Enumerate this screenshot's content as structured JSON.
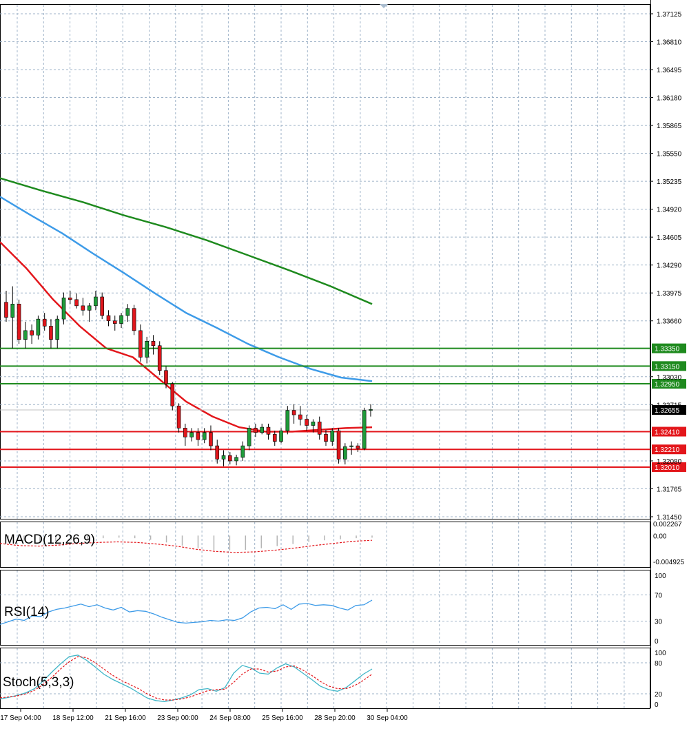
{
  "chart_data": {
    "type": "candlestick",
    "symbol": "",
    "colors": {
      "bull": "#1f9b3a",
      "bear": "#e0161c",
      "ma_fast": "#e3161b",
      "ma_mid": "#3d9be8",
      "ma_slow": "#1e8a1e",
      "support": "#e3161b",
      "resistance": "#1e8a1e",
      "grid": "#9fb3c8",
      "rsi": "#3d9be8",
      "stoch_main": "#3fb6c8",
      "stoch_signal": "#e3161b",
      "macd_hist": "#b4b4b4",
      "macd_signal": "#e3161b"
    },
    "price_axis": {
      "ylim": [
        1.3145,
        1.37125
      ],
      "ticks": [
        "1.37125",
        "1.36810",
        "1.36495",
        "1.36180",
        "1.35865",
        "1.35550",
        "1.35235",
        "1.34920",
        "1.34605",
        "1.34290",
        "1.33975",
        "1.33660",
        "1.33030",
        "1.32715",
        "1.32080",
        "1.31765",
        "1.31450"
      ]
    },
    "current_price": "1.32655",
    "horizontal_levels": [
      {
        "price": 1.3335,
        "label": "1.33350",
        "kind": "resistance"
      },
      {
        "price": 1.3315,
        "label": "1.33150",
        "kind": "resistance"
      },
      {
        "price": 1.3295,
        "label": "1.32950",
        "kind": "resistance"
      },
      {
        "price": 1.3241,
        "label": "1.32410",
        "kind": "support"
      },
      {
        "price": 1.3221,
        "label": "1.32210",
        "kind": "support"
      },
      {
        "price": 1.3201,
        "label": "1.32010",
        "kind": "support"
      }
    ],
    "time_labels": [
      "17 Sep 04:00",
      "18 Sep 12:00",
      "21 Sep 16:00",
      "23 Sep 00:00",
      "24 Sep 08:00",
      "25 Sep 16:00",
      "28 Sep 20:00",
      "30 Sep 04:00"
    ],
    "candles_ohlc": [
      [
        1.3387,
        1.34,
        1.3365,
        1.337
      ],
      [
        1.337,
        1.3405,
        1.3335,
        1.3385
      ],
      [
        1.3385,
        1.339,
        1.334,
        1.3345
      ],
      [
        1.3345,
        1.3365,
        1.3335,
        1.3355
      ],
      [
        1.3355,
        1.3362,
        1.334,
        1.335
      ],
      [
        1.335,
        1.3372,
        1.3345,
        1.3368
      ],
      [
        1.3368,
        1.3375,
        1.3355,
        1.336
      ],
      [
        1.336,
        1.3368,
        1.3335,
        1.3345
      ],
      [
        1.3345,
        1.3372,
        1.3335,
        1.3368
      ],
      [
        1.3368,
        1.3398,
        1.3362,
        1.3392
      ],
      [
        1.3392,
        1.34,
        1.3385,
        1.339
      ],
      [
        1.339,
        1.3397,
        1.338,
        1.3383
      ],
      [
        1.3383,
        1.3392,
        1.3372,
        1.3378
      ],
      [
        1.3378,
        1.3386,
        1.3365,
        1.3383
      ],
      [
        1.3383,
        1.34,
        1.3378,
        1.3393
      ],
      [
        1.3393,
        1.3398,
        1.3368,
        1.3372
      ],
      [
        1.3372,
        1.3378,
        1.336,
        1.3366
      ],
      [
        1.3366,
        1.3372,
        1.3355,
        1.3363
      ],
      [
        1.3363,
        1.3375,
        1.3358,
        1.3372
      ],
      [
        1.3372,
        1.3385,
        1.3365,
        1.338
      ],
      [
        1.338,
        1.3384,
        1.335,
        1.3355
      ],
      [
        1.3355,
        1.3362,
        1.332,
        1.3325
      ],
      [
        1.3325,
        1.3348,
        1.3318,
        1.3343
      ],
      [
        1.3343,
        1.335,
        1.3328,
        1.3338
      ],
      [
        1.3338,
        1.3343,
        1.3305,
        1.331
      ],
      [
        1.331,
        1.3315,
        1.329,
        1.3295
      ],
      [
        1.3295,
        1.3297,
        1.3265,
        1.327
      ],
      [
        1.327,
        1.3273,
        1.324,
        1.3245
      ],
      [
        1.3245,
        1.325,
        1.3225,
        1.3235
      ],
      [
        1.3235,
        1.3245,
        1.323,
        1.324
      ],
      [
        1.324,
        1.3245,
        1.3225,
        1.3232
      ],
      [
        1.3232,
        1.3245,
        1.3228,
        1.324
      ],
      [
        1.324,
        1.3248,
        1.322,
        1.3225
      ],
      [
        1.3225,
        1.3232,
        1.3205,
        1.321
      ],
      [
        1.321,
        1.322,
        1.3202,
        1.3214
      ],
      [
        1.3214,
        1.3218,
        1.3204,
        1.3208
      ],
      [
        1.3208,
        1.3215,
        1.3203,
        1.3212
      ],
      [
        1.3212,
        1.323,
        1.3208,
        1.3225
      ],
      [
        1.3225,
        1.3248,
        1.322,
        1.3245
      ],
      [
        1.3245,
        1.325,
        1.3235,
        1.324
      ],
      [
        1.324,
        1.325,
        1.3238,
        1.3246
      ],
      [
        1.3246,
        1.325,
        1.3232,
        1.3238
      ],
      [
        1.3238,
        1.3242,
        1.3225,
        1.323
      ],
      [
        1.323,
        1.3245,
        1.3228,
        1.3242
      ],
      [
        1.3242,
        1.327,
        1.3238,
        1.3265
      ],
      [
        1.3265,
        1.3272,
        1.325,
        1.326
      ],
      [
        1.326,
        1.327,
        1.3248,
        1.3255
      ],
      [
        1.3255,
        1.326,
        1.3242,
        1.3248
      ],
      [
        1.3248,
        1.3255,
        1.324,
        1.3252
      ],
      [
        1.3252,
        1.3258,
        1.3232,
        1.3238
      ],
      [
        1.3238,
        1.3243,
        1.3225,
        1.323
      ],
      [
        1.323,
        1.3245,
        1.3225,
        1.3242
      ],
      [
        1.3242,
        1.3245,
        1.3205,
        1.321
      ],
      [
        1.321,
        1.3228,
        1.3204,
        1.3224
      ],
      [
        1.3224,
        1.323,
        1.3215,
        1.3225
      ],
      [
        1.3225,
        1.3228,
        1.3218,
        1.3222
      ],
      [
        1.3222,
        1.3268,
        1.322,
        1.3265
      ],
      [
        1.3265,
        1.3272,
        1.3258,
        1.3266
      ]
    ],
    "moving_averages": [
      {
        "period_label": "fast",
        "values": [
          1.3455,
          1.3425,
          1.339,
          1.336,
          1.3335,
          1.3325,
          1.33,
          1.3275,
          1.3258,
          1.3246,
          1.3241,
          1.3241,
          1.3243,
          1.3245,
          1.3246
        ]
      },
      {
        "period_label": "mid",
        "values": [
          1.3506,
          1.3485,
          1.3465,
          1.3442,
          1.342,
          1.3397,
          1.3375,
          1.3358,
          1.334,
          1.3325,
          1.3312,
          1.3302,
          1.3298
        ]
      },
      {
        "period_label": "slow",
        "values": [
          1.3527,
          1.3513,
          1.35,
          1.3485,
          1.3472,
          1.3457,
          1.344,
          1.3423,
          1.3405,
          1.3385
        ]
      }
    ],
    "macd": {
      "label": "MACD(12,26,9)",
      "ylim": [
        -0.004925,
        0.002267
      ],
      "ticks": [
        "0.002267",
        "0.00",
        "-0.004925"
      ],
      "histogram": [
        -0.0008,
        -0.001,
        -0.0012,
        -0.001,
        -0.0008,
        -0.0006,
        -0.0005,
        -0.0004,
        -0.0005,
        -0.0008,
        -0.0013,
        -0.0019,
        -0.0024,
        -0.0027,
        -0.0028,
        -0.0027,
        -0.0024,
        -0.002,
        -0.0016,
        -0.0012,
        -0.0009,
        -0.0007,
        -0.0005,
        -0.0004
      ],
      "signal": [
        -0.0015,
        -0.0019,
        -0.002,
        -0.0018,
        -0.0015,
        -0.0013,
        -0.0012,
        -0.0013,
        -0.0016,
        -0.002,
        -0.0026,
        -0.003,
        -0.0032,
        -0.0031,
        -0.0028,
        -0.0024,
        -0.0019,
        -0.0015,
        -0.0011,
        -0.0009
      ]
    },
    "rsi": {
      "label": "RSI(14)",
      "ylim": [
        0,
        100
      ],
      "ticks": [
        "100",
        "70",
        "30",
        "0"
      ],
      "values": [
        25,
        29,
        33,
        31,
        38,
        37,
        44,
        48,
        50,
        53,
        56,
        52,
        55,
        50,
        47,
        51,
        44,
        46,
        45,
        41,
        36,
        32,
        28,
        27,
        28,
        29,
        31,
        30,
        32,
        31,
        35,
        44,
        50,
        51,
        49,
        55,
        48,
        56,
        57,
        54,
        55,
        54,
        50,
        47,
        54,
        55,
        62
      ]
    },
    "stoch": {
      "label": "Stoch(5,3,3)",
      "ylim": [
        0,
        100
      ],
      "ticks": [
        "100",
        "80",
        "20",
        "0"
      ],
      "main": [
        10,
        13,
        17,
        22,
        30,
        45,
        62,
        78,
        92,
        95,
        85,
        72,
        58,
        48,
        40,
        32,
        22,
        12,
        7,
        5,
        8,
        12,
        18,
        28,
        30,
        25,
        32,
        60,
        75,
        70,
        60,
        58,
        70,
        78,
        72,
        60,
        48,
        35,
        28,
        25,
        32,
        45,
        58,
        68
      ],
      "signal": [
        12,
        14,
        16,
        20,
        27,
        38,
        52,
        68,
        82,
        92,
        90,
        80,
        68,
        56,
        46,
        38,
        30,
        20,
        12,
        8,
        8,
        10,
        14,
        20,
        26,
        28,
        29,
        42,
        58,
        68,
        68,
        62,
        64,
        72,
        74,
        66,
        56,
        44,
        35,
        30,
        30,
        36,
        46,
        58
      ]
    }
  }
}
